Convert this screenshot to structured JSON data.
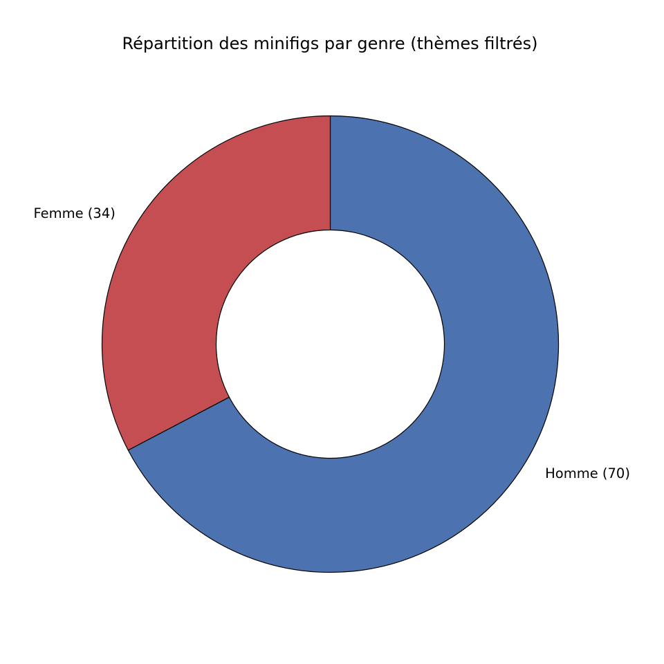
{
  "chart_data": {
    "type": "pie",
    "variant": "donut",
    "title": "Répartition des minifigs par genre (thèmes filtrés)",
    "slices": [
      {
        "label": "Homme (70)",
        "category": "Homme",
        "value": 70,
        "color": "#4c72b0"
      },
      {
        "label": "Femme (34)",
        "category": "Femme",
        "value": 34,
        "color": "#c44e52"
      }
    ],
    "start_angle": "top",
    "direction": "clockwise",
    "edge_color": "#000000",
    "legend": "none"
  }
}
